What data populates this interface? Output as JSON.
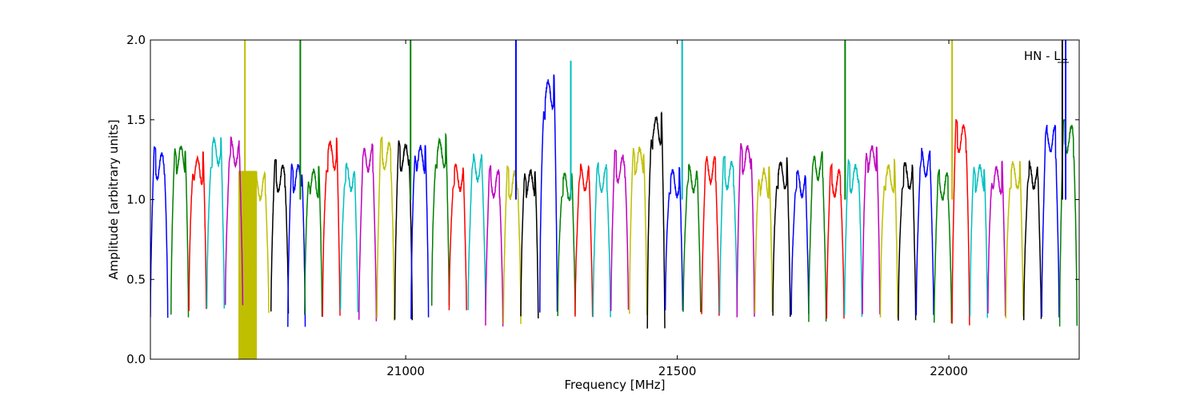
{
  "chart_data": {
    "type": "line",
    "title": "",
    "xlabel": "Frequency [MHz]",
    "ylabel": "Amplitude [arbitrary units]",
    "xlim": [
      20530,
      22240
    ],
    "ylim": [
      0.0,
      2.0
    ],
    "x_ticks": [
      21000,
      21500,
      22000
    ],
    "x_tick_labels": [
      "21000",
      "21500",
      "22000"
    ],
    "y_ticks": [
      0.0,
      0.5,
      1.0,
      1.5,
      2.0
    ],
    "y_tick_labels": [
      "0.0",
      "0.5",
      "1.0",
      "1.5",
      "2.0"
    ],
    "grid": false,
    "annotation": "HN - LL",
    "color_cycle": [
      "#0000ff",
      "#008000",
      "#ff0000",
      "#00bfbf",
      "#bf00bf",
      "#bfbf00",
      "#000000"
    ],
    "band_width_mhz": 32,
    "band_starts": [
      20530,
      20568,
      20601,
      20634,
      20668,
      20716,
      20752,
      20783,
      20814,
      20847,
      20880,
      20914,
      20947,
      20980,
      21010,
      21048,
      21080,
      21115,
      21147,
      21180,
      21212,
      21247,
      21280,
      21312,
      21345,
      21378,
      21412,
      21445,
      21478,
      21511,
      21545,
      21578,
      21610,
      21643,
      21676,
      21710,
      21742,
      21775,
      21808,
      21841,
      21874,
      21907,
      21940,
      21973,
      22006,
      22039,
      22072,
      22105,
      22138,
      22171,
      22204
    ],
    "band_peaks": [
      1.33,
      1.37,
      1.3,
      1.42,
      1.42,
      1.2,
      1.25,
      1.25,
      1.22,
      1.4,
      1.26,
      1.38,
      1.39,
      1.38,
      1.37,
      1.41,
      1.26,
      1.32,
      1.22,
      1.21,
      1.22,
      1.78,
      1.2,
      1.26,
      1.25,
      1.31,
      1.36,
      1.55,
      1.22,
      1.25,
      1.31,
      1.27,
      1.37,
      1.22,
      1.27,
      1.22,
      1.33,
      1.22,
      1.25,
      1.37,
      1.25,
      1.27,
      1.35,
      1.2,
      1.5,
      1.25,
      1.24,
      1.27,
      1.27,
      1.5,
      1.5
    ],
    "band_floors": [
      0.26,
      0.27,
      0.31,
      0.31,
      0.33,
      0.3,
      0.29,
      0.2,
      0.27,
      0.27,
      0.3,
      0.24,
      0.25,
      0.25,
      0.26,
      0.33,
      0.3,
      0.31,
      0.21,
      0.23,
      0.26,
      0.3,
      0.28,
      0.26,
      0.27,
      0.3,
      0.28,
      0.19,
      0.3,
      0.3,
      0.28,
      0.28,
      0.27,
      0.29,
      0.27,
      0.28,
      0.24,
      0.26,
      0.27,
      0.28,
      0.26,
      0.25,
      0.27,
      0.22,
      0.22,
      0.26,
      0.28,
      0.26,
      0.25,
      0.26,
      0.2
    ],
    "spikes": [
      {
        "x": 20704,
        "y": 2.0,
        "color": "#bfbf00"
      },
      {
        "x": 20806,
        "y": 2.0,
        "color": "#008000"
      },
      {
        "x": 21009,
        "y": 2.0,
        "color": "#008000"
      },
      {
        "x": 21203,
        "y": 2.0,
        "color": "#0000ff"
      },
      {
        "x": 21304,
        "y": 1.87,
        "color": "#00bfbf"
      },
      {
        "x": 21509,
        "y": 2.0,
        "color": "#00bfbf"
      },
      {
        "x": 21809,
        "y": 2.0,
        "color": "#008000"
      },
      {
        "x": 22006,
        "y": 2.0,
        "color": "#bfbf00"
      },
      {
        "x": 22209,
        "y": 2.0,
        "color": "#000000"
      },
      {
        "x": 22215,
        "y": 2.0,
        "color": "#0000ff"
      }
    ],
    "fill_region": {
      "x": [
        20692,
        20726
      ],
      "ymin": 0.0,
      "ymax": 1.18,
      "color": "#bfbf00"
    }
  }
}
